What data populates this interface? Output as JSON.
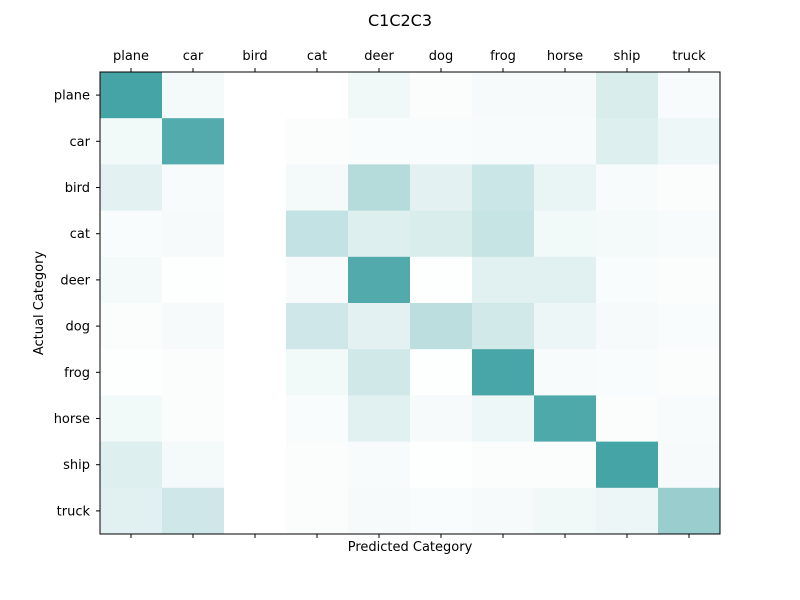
{
  "chart_data": {
    "type": "heatmap",
    "title": "C1C2C3",
    "xlabel": "Predicted Category",
    "ylabel": "Actual Category",
    "x_categories": [
      "plane",
      "car",
      "bird",
      "cat",
      "deer",
      "dog",
      "frog",
      "horse",
      "ship",
      "truck"
    ],
    "y_categories": [
      "plane",
      "car",
      "bird",
      "cat",
      "deer",
      "dog",
      "frog",
      "horse",
      "ship",
      "truck"
    ],
    "x_ticks_position": "top",
    "grid": false,
    "legend": "none",
    "colors": {
      "low": "#ffffff",
      "high": "#45a4a6"
    },
    "value_range": [
      0,
      1
    ],
    "values": [
      [
        1.0,
        0.06,
        0.0,
        0.0,
        0.08,
        0.02,
        0.05,
        0.05,
        0.2,
        0.04
      ],
      [
        0.07,
        0.92,
        0.0,
        0.02,
        0.03,
        0.03,
        0.04,
        0.04,
        0.18,
        0.09
      ],
      [
        0.15,
        0.04,
        0.0,
        0.06,
        0.4,
        0.15,
        0.28,
        0.12,
        0.04,
        0.02
      ],
      [
        0.03,
        0.05,
        0.0,
        0.32,
        0.18,
        0.2,
        0.3,
        0.07,
        0.06,
        0.04
      ],
      [
        0.06,
        0.01,
        0.0,
        0.04,
        0.93,
        0.01,
        0.16,
        0.16,
        0.03,
        0.02
      ],
      [
        0.02,
        0.05,
        0.0,
        0.26,
        0.15,
        0.36,
        0.24,
        0.1,
        0.05,
        0.03
      ],
      [
        0.01,
        0.02,
        0.0,
        0.07,
        0.25,
        0.01,
        0.98,
        0.04,
        0.03,
        0.02
      ],
      [
        0.07,
        0.02,
        0.0,
        0.03,
        0.16,
        0.05,
        0.09,
        0.95,
        0.02,
        0.04
      ],
      [
        0.18,
        0.06,
        0.0,
        0.02,
        0.04,
        0.01,
        0.02,
        0.02,
        1.0,
        0.05
      ],
      [
        0.16,
        0.26,
        0.0,
        0.02,
        0.05,
        0.03,
        0.05,
        0.08,
        0.1,
        0.55
      ]
    ]
  }
}
